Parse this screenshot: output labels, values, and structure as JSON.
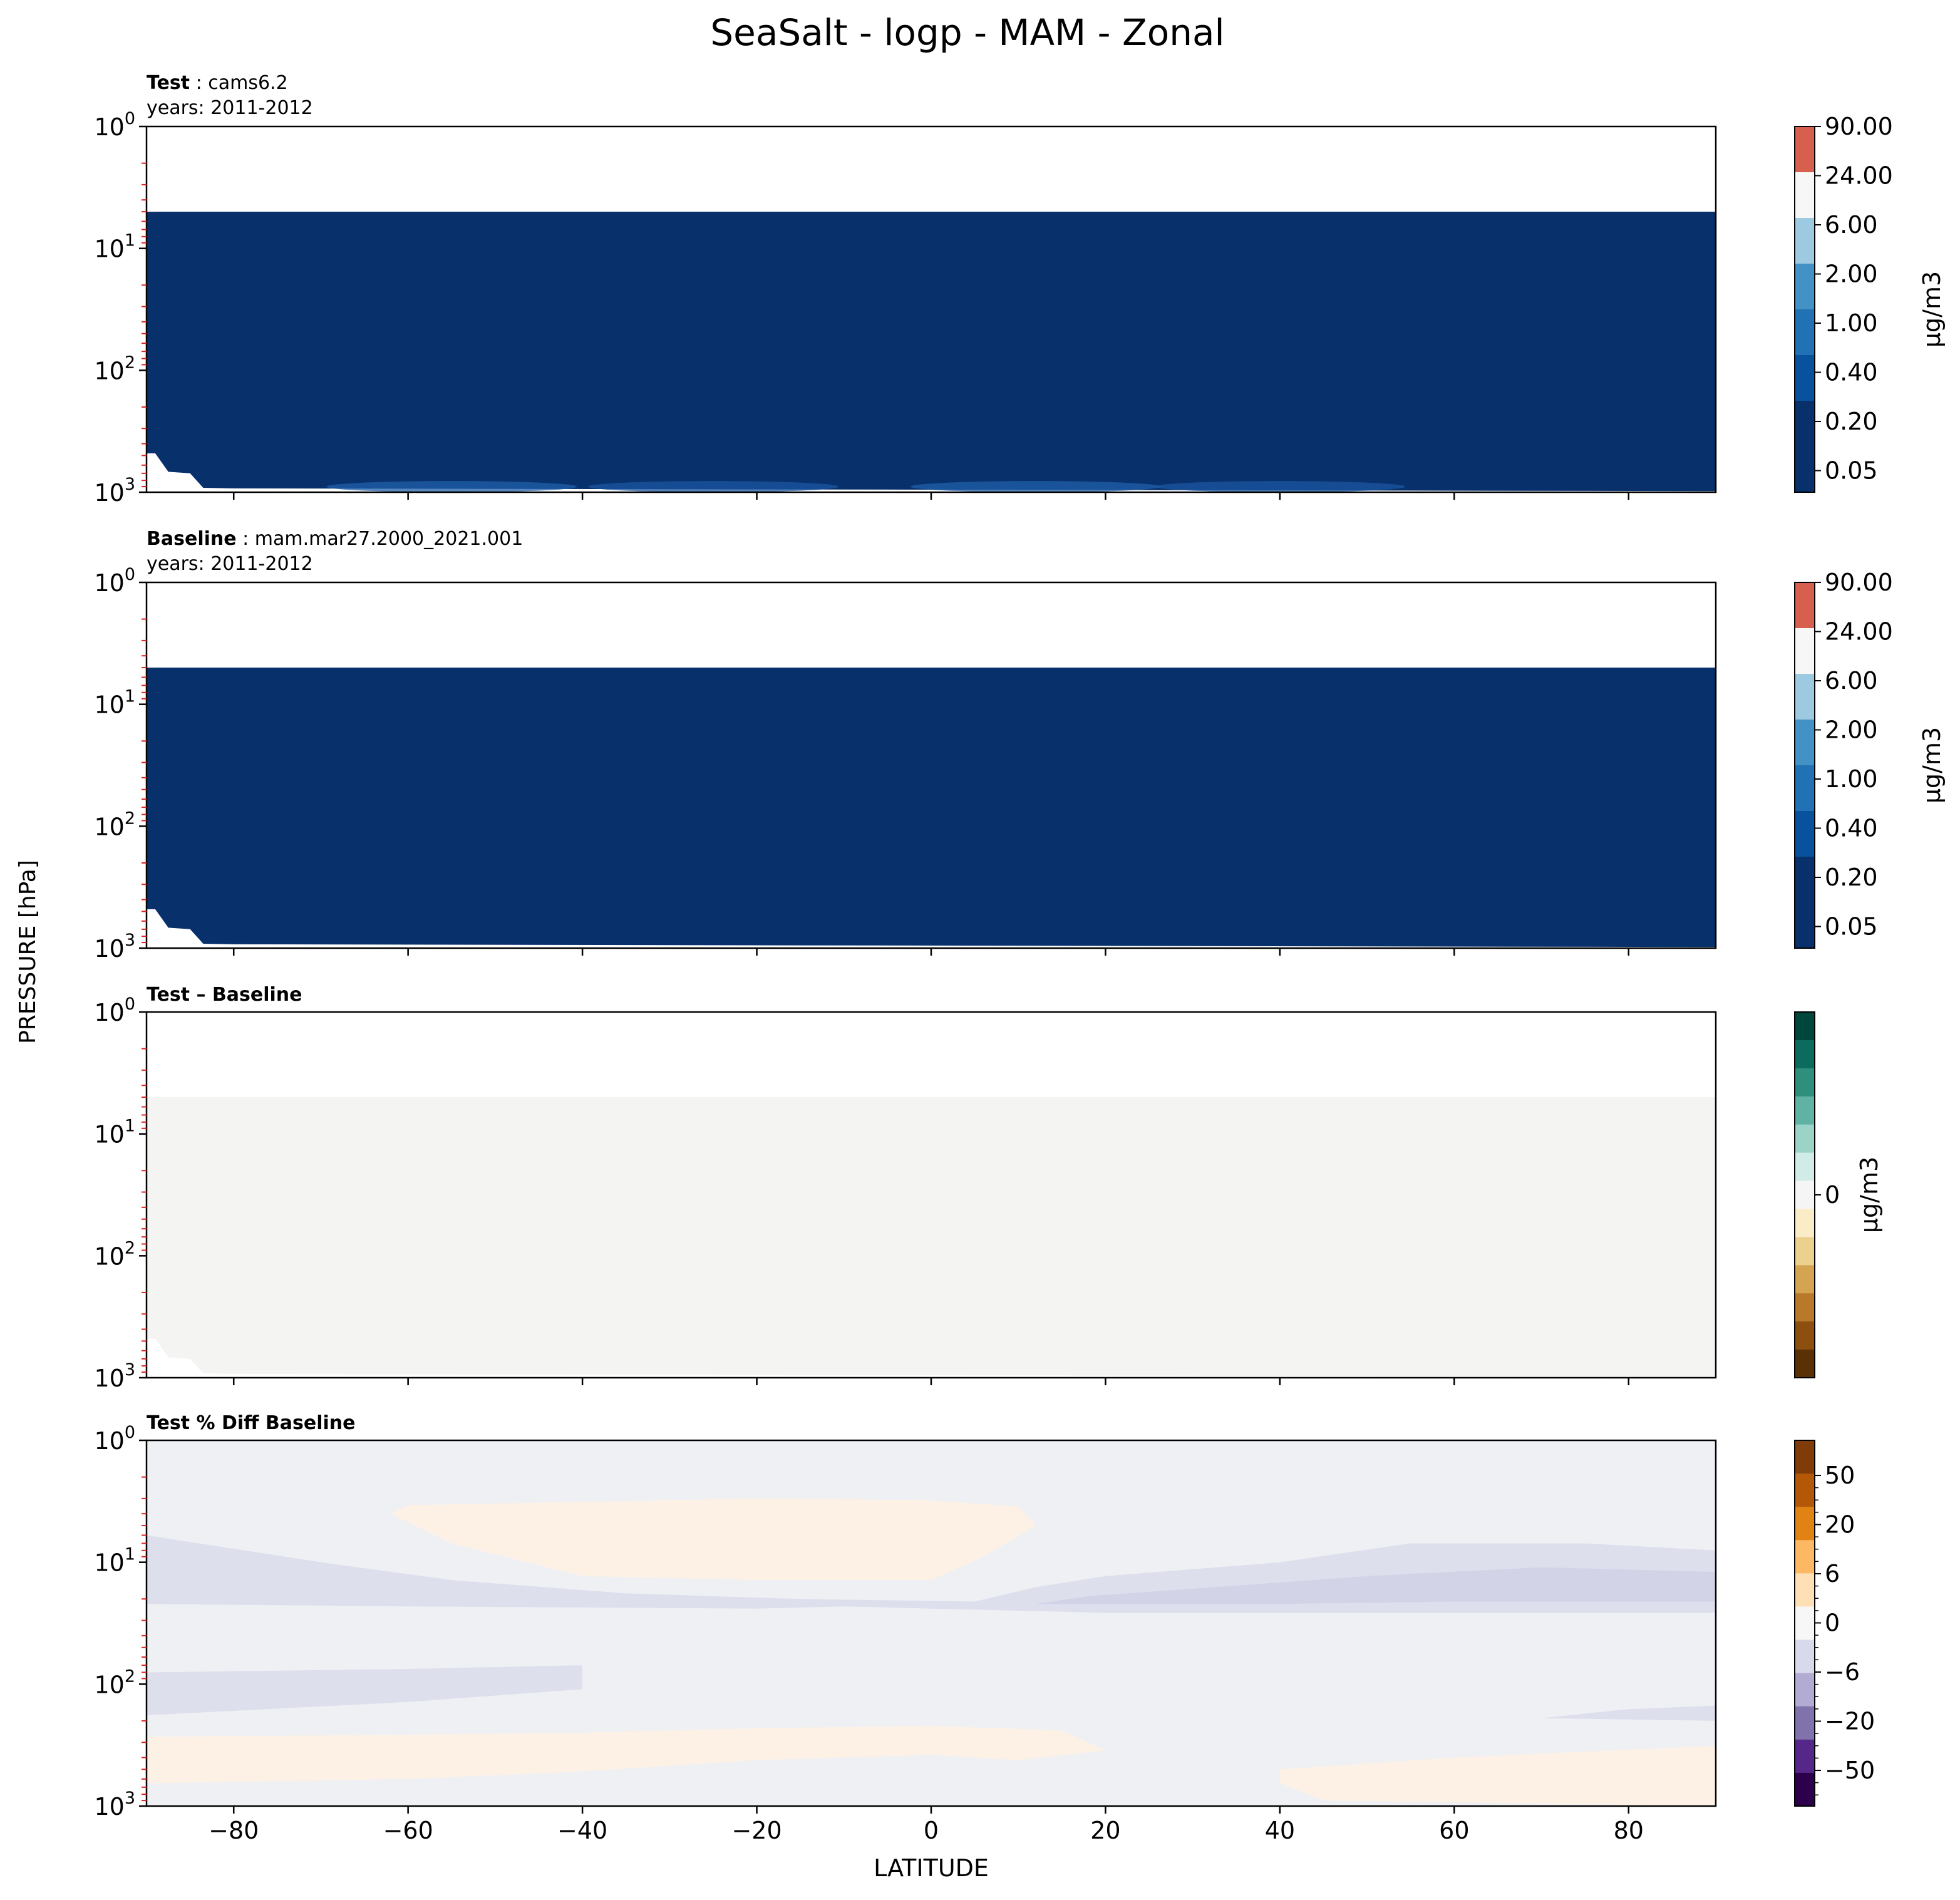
{
  "figure": {
    "title": "SeaSalt - logp - MAM - Zonal",
    "shared_ylabel": "PRESSURE [hPa]",
    "shared_xlabel": "LATITUDE"
  },
  "chart_data": [
    {
      "type": "heatmap",
      "header_bold": "Test",
      "header_name": "cams6.2",
      "header_years": "years: 2011-2012",
      "x_range": [
        -90,
        90
      ],
      "x_ticks": [
        -80,
        -60,
        -40,
        -20,
        0,
        20,
        40,
        60,
        80
      ],
      "y_scale": "log",
      "y_range": [
        1000,
        1
      ],
      "y_ticks": [
        {
          "base": "10",
          "exp": "0"
        },
        {
          "base": "10",
          "exp": "1"
        },
        {
          "base": "10",
          "exp": "2"
        },
        {
          "base": "10",
          "exp": "3"
        }
      ],
      "data_top_hpa": 5,
      "fill_color": "#08306b",
      "surface_band": [
        {
          "lat": -55,
          "color": "#1f5fa8"
        },
        {
          "lat": -25,
          "color": "#1a56a0"
        },
        {
          "lat": 12,
          "color": "#1f5fa8"
        },
        {
          "lat": 40,
          "color": "#1a56a0"
        }
      ],
      "colorbar": {
        "label": "µg/m3",
        "tick_labels": [
          "90.00",
          "24.00",
          "6.00",
          "2.00",
          "1.00",
          "0.40",
          "0.20",
          "0.05"
        ],
        "colors": [
          "#d6604d",
          "#f7f7f7",
          "#9ecae1",
          "#4292c6",
          "#2171b5",
          "#08519c",
          "#08306b",
          "#08306b"
        ]
      }
    },
    {
      "type": "heatmap",
      "header_bold": "Baseline",
      "header_name": "mam.mar27.2000_2021.001",
      "header_years": "years: 2011-2012",
      "x_range": [
        -90,
        90
      ],
      "x_ticks": [
        -80,
        -60,
        -40,
        -20,
        0,
        20,
        40,
        60,
        80
      ],
      "y_scale": "log",
      "y_range": [
        1000,
        1
      ],
      "y_ticks": [
        {
          "base": "10",
          "exp": "0"
        },
        {
          "base": "10",
          "exp": "1"
        },
        {
          "base": "10",
          "exp": "2"
        },
        {
          "base": "10",
          "exp": "3"
        }
      ],
      "data_top_hpa": 5,
      "fill_color": "#08306b",
      "colorbar": {
        "label": "µg/m3",
        "tick_labels": [
          "90.00",
          "24.00",
          "6.00",
          "2.00",
          "1.00",
          "0.40",
          "0.20",
          "0.05"
        ],
        "colors": [
          "#d6604d",
          "#f7f7f7",
          "#9ecae1",
          "#4292c6",
          "#2171b5",
          "#08519c",
          "#08306b",
          "#08306b"
        ]
      }
    },
    {
      "type": "heatmap",
      "header_bold": "Test – Baseline",
      "x_range": [
        -90,
        90
      ],
      "x_ticks": [
        -80,
        -60,
        -40,
        -20,
        0,
        20,
        40,
        60,
        80
      ],
      "y_scale": "log",
      "y_range": [
        1000,
        1
      ],
      "y_ticks": [
        {
          "base": "10",
          "exp": "0"
        },
        {
          "base": "10",
          "exp": "1"
        },
        {
          "base": "10",
          "exp": "2"
        },
        {
          "base": "10",
          "exp": "3"
        }
      ],
      "data_top_hpa": 5,
      "fill_color": "#f4f4f2",
      "colorbar": {
        "label": "µg/m3",
        "tick_labels": [
          "0"
        ],
        "colors": [
          "#01463a",
          "#0b6b5d",
          "#2e8f7c",
          "#60b3a3",
          "#9bd3c7",
          "#d1ece7",
          "#f5f5f5",
          "#fbecc8",
          "#ecd08e",
          "#d5a452",
          "#b8792a",
          "#8d4f10",
          "#5a3005"
        ]
      }
    },
    {
      "type": "heatmap",
      "header_bold": "Test % Diff Baseline",
      "x_range": [
        -90,
        90
      ],
      "x_ticks": [
        -80,
        -60,
        -40,
        -20,
        0,
        20,
        40,
        60,
        80
      ],
      "y_scale": "log",
      "y_range": [
        1000,
        1
      ],
      "y_ticks": [
        {
          "base": "10",
          "exp": "0"
        },
        {
          "base": "10",
          "exp": "1"
        },
        {
          "base": "10",
          "exp": "2"
        },
        {
          "base": "10",
          "exp": "3"
        }
      ],
      "background": "#eff0f4",
      "regions": [
        {
          "name": "upper-negative-band",
          "color": "#dedfed",
          "points": [
            [
              -90,
              4.5
            ],
            [
              -90,
              22
            ],
            [
              -60,
              23
            ],
            [
              -20,
              24
            ],
            [
              -10,
              23
            ],
            [
              0,
              24
            ],
            [
              20,
              26
            ],
            [
              40,
              26
            ],
            [
              60,
              26
            ],
            [
              90,
              26
            ],
            [
              90,
              8
            ],
            [
              75,
              7
            ],
            [
              55,
              7
            ],
            [
              40,
              10
            ],
            [
              20,
              13
            ],
            [
              12,
              16
            ],
            [
              5,
              21
            ],
            [
              -15,
              20
            ],
            [
              -35,
              18
            ],
            [
              -55,
              14
            ],
            [
              -70,
              10
            ],
            [
              -90,
              6
            ]
          ]
        },
        {
          "name": "upper-strong-negative",
          "color": "#d2d3e7",
          "points": [
            [
              12,
              22
            ],
            [
              40,
              22
            ],
            [
              60,
              21
            ],
            [
              90,
              21
            ],
            [
              90,
              12
            ],
            [
              70,
              11
            ],
            [
              50,
              13
            ],
            [
              38,
              15
            ],
            [
              18,
              19
            ]
          ]
        },
        {
          "name": "mid-positive",
          "color": "#fcf1e4",
          "points": [
            [
              -60,
              3.4
            ],
            [
              -40,
              3.2
            ],
            [
              -20,
              3.0
            ],
            [
              0,
              3.1
            ],
            [
              10,
              3.5
            ],
            [
              12,
              5
            ],
            [
              6,
              9
            ],
            [
              0,
              14
            ],
            [
              -20,
              14
            ],
            [
              -40,
              13
            ],
            [
              -55,
              7
            ],
            [
              -62,
              4
            ]
          ]
        },
        {
          "name": "lower-negative",
          "color": "#dedfed",
          "points": [
            [
              -90,
              80
            ],
            [
              -60,
              75
            ],
            [
              -40,
              70
            ],
            [
              -40,
              110
            ],
            [
              -60,
              140
            ],
            [
              -90,
              180
            ]
          ]
        },
        {
          "name": "lower-negative-right",
          "color": "#dedfed",
          "points": [
            [
              70,
              190
            ],
            [
              80,
              160
            ],
            [
              90,
              150
            ],
            [
              90,
              200
            ],
            [
              80,
              195
            ]
          ]
        },
        {
          "name": "near-surface-positive",
          "color": "#fcf1e4",
          "points": [
            [
              -90,
              270
            ],
            [
              -60,
              260
            ],
            [
              -40,
              250
            ],
            [
              -20,
              230
            ],
            [
              0,
              220
            ],
            [
              15,
              240
            ],
            [
              20,
              350
            ],
            [
              10,
              420
            ],
            [
              0,
              380
            ],
            [
              -20,
              420
            ],
            [
              -40,
              520
            ],
            [
              -60,
              600
            ],
            [
              -90,
              650
            ]
          ]
        },
        {
          "name": "near-surface-positive-right",
          "color": "#fcf1e4",
          "points": [
            [
              40,
              500
            ],
            [
              60,
              400
            ],
            [
              90,
              320
            ],
            [
              90,
              1000
            ],
            [
              45,
              900
            ],
            [
              40,
              650
            ]
          ]
        }
      ],
      "colorbar": {
        "label": "",
        "tick_labels": [
          "50",
          "20",
          "6",
          "0",
          "−6",
          "−20",
          "−50"
        ],
        "colors": [
          "#7f3b08",
          "#b35806",
          "#e08214",
          "#fdb863",
          "#fee0b6",
          "#f7f7f7",
          "#d8daeb",
          "#b2abd2",
          "#8073ac",
          "#542788",
          "#2d004b"
        ]
      }
    }
  ]
}
